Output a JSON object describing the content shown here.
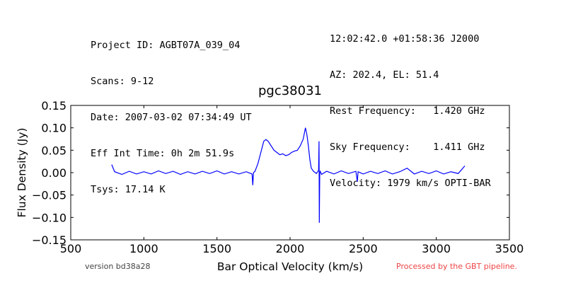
{
  "header": {
    "left": [
      "Project ID: AGBT07A_039_04",
      "Scans: 9-12",
      "Date: 2007-03-02 07:34:49 UT",
      "Eff Int Time: 0h 2m 51.9s",
      "Tsys: 17.14 K"
    ],
    "right": [
      "12:02:42.0 +01:58:36 J2000",
      "AZ: 202.4, EL: 51.4",
      "Rest Frequency:   1.420 GHz",
      "Sky Frequency:    1.411 GHz",
      "Velocity: 1979 km/s OPTI-BAR"
    ]
  },
  "chart_data": {
    "type": "line",
    "title": "pgc38031",
    "xlabel": "Bar Optical Velocity (km/s)",
    "ylabel": "Flux Density (Jy)",
    "xlim": [
      500,
      3500
    ],
    "ylim": [
      -0.15,
      0.15
    ],
    "x_ticks": [
      500,
      1000,
      1500,
      2000,
      2500,
      3000,
      3500
    ],
    "x_tick_labels": [
      "500",
      "1000",
      "1500",
      "2000",
      "2500",
      "3000",
      "3500"
    ],
    "y_ticks": [
      0.15,
      0.1,
      0.05,
      0.0,
      -0.05,
      -0.1,
      -0.15
    ],
    "y_tick_labels": [
      "0.15",
      "0.10",
      "0.05",
      "0.00",
      "−0.05",
      "−0.10",
      "−0.15"
    ],
    "grid": false,
    "series": [
      {
        "color": "#0000ff",
        "x": [
          780,
          800,
          850,
          900,
          950,
          1000,
          1050,
          1100,
          1150,
          1200,
          1250,
          1300,
          1350,
          1400,
          1450,
          1500,
          1550,
          1600,
          1650,
          1700,
          1740,
          1745,
          1750,
          1760,
          1780,
          1800,
          1820,
          1835,
          1850,
          1870,
          1890,
          1910,
          1930,
          1950,
          1970,
          1990,
          2010,
          2030,
          2050,
          2070,
          2090,
          2105,
          2115,
          2125,
          2135,
          2145,
          2160,
          2180,
          2195,
          2198,
          2200,
          2203,
          2206,
          2215,
          2250,
          2300,
          2350,
          2400,
          2450,
          2460,
          2465,
          2500,
          2550,
          2600,
          2650,
          2700,
          2750,
          2800,
          2850,
          2900,
          2950,
          3000,
          3050,
          3100,
          3150,
          3195
        ],
        "y": [
          0.018,
          0.002,
          -0.004,
          0.003,
          -0.003,
          0.002,
          -0.003,
          0.004,
          -0.002,
          0.003,
          -0.004,
          0.002,
          -0.003,
          0.003,
          -0.002,
          0.004,
          -0.003,
          0.002,
          -0.003,
          0.002,
          -0.003,
          -0.028,
          0.0,
          0.003,
          0.02,
          0.045,
          0.07,
          0.074,
          0.07,
          0.06,
          0.05,
          0.045,
          0.04,
          0.042,
          0.038,
          0.04,
          0.045,
          0.048,
          0.05,
          0.06,
          0.075,
          0.1,
          0.085,
          0.06,
          0.03,
          0.01,
          0.003,
          -0.002,
          0.005,
          0.07,
          -0.112,
          0.0,
          0.003,
          -0.004,
          0.003,
          -0.003,
          0.004,
          -0.002,
          0.003,
          -0.02,
          0.002,
          -0.003,
          0.003,
          -0.002,
          0.004,
          -0.003,
          0.002,
          0.01,
          -0.003,
          0.003,
          -0.002,
          0.004,
          -0.003,
          0.002,
          -0.002,
          0.015
        ]
      }
    ]
  },
  "footer": {
    "version": "version bd38a28",
    "pipeline": "Processed by the GBT pipeline.",
    "pipeline_color": "#ee4444"
  }
}
